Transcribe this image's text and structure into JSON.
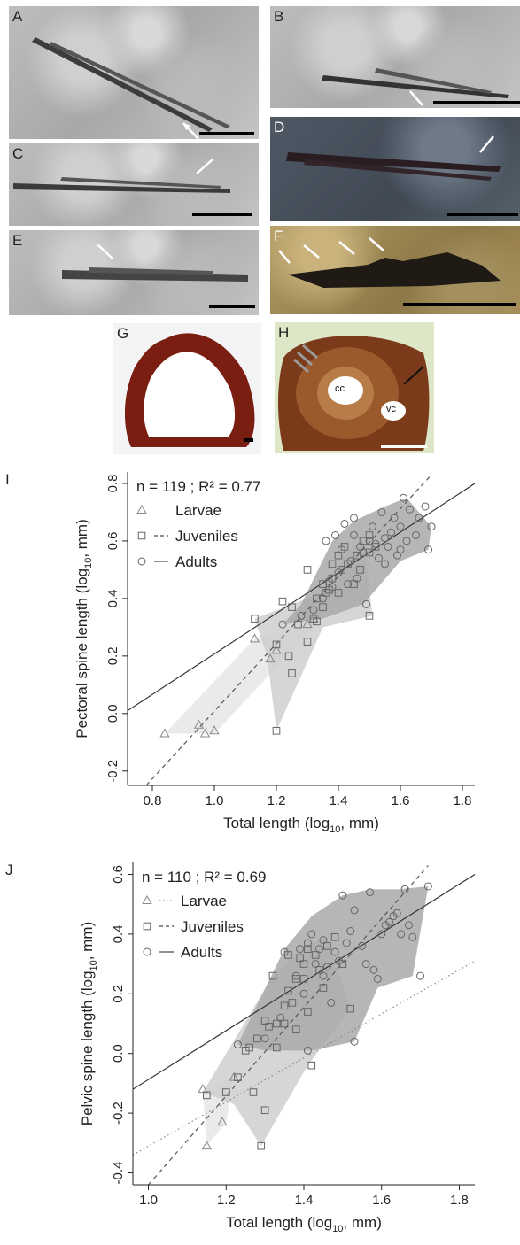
{
  "panels_photo": [
    {
      "letter": "A"
    },
    {
      "letter": "B"
    },
    {
      "letter": "C"
    },
    {
      "letter": "D"
    },
    {
      "letter": "E"
    },
    {
      "letter": "F"
    },
    {
      "letter": "G"
    },
    {
      "letter": "H"
    }
  ],
  "section_labels": {
    "cc": "cc",
    "vc": "vc"
  },
  "chart_data": [
    {
      "type": "scatter",
      "letter": "I",
      "stat": "n = 119 ; R² = 0.77",
      "xlabel_main": "Total length (log",
      "xlabel_sub": "10",
      "xlabel_end": ", mm)",
      "ylabel_main": "Pectoral spine length (log",
      "ylabel_sub": "10",
      "ylabel_end": ", mm)",
      "xlim": [
        0.72,
        1.84
      ],
      "ylim": [
        -0.25,
        0.84
      ],
      "xticks": [
        "0.8",
        "1.0",
        "1.2",
        "1.4",
        "1.6",
        "1.8"
      ],
      "xtick_values": [
        0.8,
        1.0,
        1.2,
        1.4,
        1.6,
        1.8
      ],
      "yticks": [
        "-0.2",
        "0.0",
        "0.2",
        "0.4",
        "0.6",
        "0.8"
      ],
      "ytick_values": [
        -0.2,
        0.0,
        0.2,
        0.4,
        0.6,
        0.8
      ],
      "legend": [
        {
          "name": "Larvae",
          "marker": "triangle",
          "line": "none"
        },
        {
          "name": "Juveniles",
          "marker": "square",
          "line": "dashed"
        },
        {
          "name": "Adults",
          "marker": "circle",
          "line": "solid"
        }
      ],
      "regression_lines": [
        {
          "style": "solid",
          "x": [
            0.72,
            1.84
          ],
          "y": [
            0.01,
            0.8
          ]
        },
        {
          "style": "dashed",
          "x": [
            0.78,
            1.7
          ],
          "y": [
            -0.25,
            0.83
          ]
        }
      ],
      "hulls": [
        {
          "name": "Larvae",
          "shade": "#e6e6e6",
          "points": [
            [
              0.84,
              -0.07
            ],
            [
              1.13,
              0.26
            ],
            [
              1.31,
              0.32
            ],
            [
              1.33,
              0.31
            ],
            [
              1.0,
              -0.07
            ]
          ]
        },
        {
          "name": "Juveniles",
          "shade": "#cfcfcf",
          "points": [
            [
              1.13,
              0.33
            ],
            [
              1.37,
              0.43
            ],
            [
              1.42,
              0.55
            ],
            [
              1.48,
              0.61
            ],
            [
              1.51,
              0.34
            ],
            [
              1.35,
              0.3
            ],
            [
              1.2,
              -0.06
            ],
            [
              1.17,
              0.2
            ]
          ]
        },
        {
          "name": "Adults",
          "shade": "#a9a9a9",
          "points": [
            [
              1.22,
              0.31
            ],
            [
              1.28,
              0.38
            ],
            [
              1.38,
              0.6
            ],
            [
              1.45,
              0.67
            ],
            [
              1.55,
              0.72
            ],
            [
              1.62,
              0.75
            ],
            [
              1.7,
              0.65
            ],
            [
              1.69,
              0.57
            ],
            [
              1.6,
              0.53
            ],
            [
              1.48,
              0.38
            ],
            [
              1.35,
              0.33
            ]
          ]
        }
      ],
      "series": [
        {
          "name": "Larvae",
          "marker": "triangle",
          "x": [
            0.84,
            0.95,
            0.97,
            1.0,
            1.13,
            1.18,
            1.2,
            1.3,
            1.32
          ],
          "y": [
            -0.07,
            -0.04,
            -0.07,
            -0.06,
            0.26,
            0.19,
            0.22,
            0.31,
            0.33
          ]
        },
        {
          "name": "Juveniles",
          "marker": "square",
          "x": [
            1.13,
            1.2,
            1.2,
            1.22,
            1.24,
            1.25,
            1.25,
            1.27,
            1.3,
            1.3,
            1.32,
            1.33,
            1.33,
            1.35,
            1.35,
            1.36,
            1.37,
            1.38,
            1.38,
            1.4,
            1.4,
            1.41,
            1.42,
            1.43,
            1.45,
            1.46,
            1.47,
            1.48,
            1.5,
            1.5,
            1.5,
            1.52
          ],
          "y": [
            0.33,
            -0.06,
            0.24,
            0.39,
            0.2,
            0.14,
            0.37,
            0.31,
            0.25,
            0.5,
            0.33,
            0.32,
            0.4,
            0.37,
            0.45,
            0.42,
            0.43,
            0.47,
            0.52,
            0.42,
            0.55,
            0.5,
            0.58,
            0.52,
            0.45,
            0.55,
            0.5,
            0.6,
            0.34,
            0.56,
            0.62,
            0.58
          ]
        },
        {
          "name": "Adults",
          "marker": "circle",
          "x": [
            1.22,
            1.28,
            1.32,
            1.35,
            1.36,
            1.37,
            1.38,
            1.39,
            1.4,
            1.41,
            1.42,
            1.43,
            1.44,
            1.45,
            1.45,
            1.46,
            1.47,
            1.48,
            1.49,
            1.5,
            1.51,
            1.52,
            1.53,
            1.54,
            1.55,
            1.55,
            1.56,
            1.57,
            1.58,
            1.59,
            1.6,
            1.6,
            1.61,
            1.62,
            1.63,
            1.65,
            1.66,
            1.68,
            1.69,
            1.7
          ],
          "y": [
            0.31,
            0.34,
            0.36,
            0.4,
            0.6,
            0.46,
            0.44,
            0.62,
            0.49,
            0.57,
            0.66,
            0.45,
            0.53,
            0.62,
            0.68,
            0.47,
            0.58,
            0.56,
            0.38,
            0.6,
            0.65,
            0.59,
            0.54,
            0.7,
            0.61,
            0.52,
            0.58,
            0.63,
            0.68,
            0.55,
            0.57,
            0.65,
            0.75,
            0.6,
            0.71,
            0.62,
            0.68,
            0.72,
            0.57,
            0.65
          ]
        }
      ]
    },
    {
      "type": "scatter",
      "letter": "J",
      "stat": "n = 110 ; R² = 0.69",
      "xlabel_main": "Total length (log",
      "xlabel_sub": "10",
      "xlabel_end": ", mm)",
      "ylabel_main": "Pelvic spine length (log",
      "ylabel_sub": "10",
      "ylabel_end": ", mm)",
      "xlim": [
        0.96,
        1.84
      ],
      "ylim": [
        -0.44,
        0.64
      ],
      "xticks": [
        "1.0",
        "1.2",
        "1.4",
        "1.6",
        "1.8"
      ],
      "xtick_values": [
        1.0,
        1.2,
        1.4,
        1.6,
        1.8
      ],
      "yticks": [
        "-0.4",
        "-0.2",
        "0.0",
        "0.2",
        "0.4",
        "0.6"
      ],
      "ytick_values": [
        -0.4,
        -0.2,
        0.0,
        0.2,
        0.4,
        0.6
      ],
      "legend": [
        {
          "name": "Larvae",
          "marker": "triangle",
          "line": "dotted"
        },
        {
          "name": "Juveniles",
          "marker": "square",
          "line": "dashed"
        },
        {
          "name": "Adults",
          "marker": "circle",
          "line": "solid"
        }
      ],
      "regression_lines": [
        {
          "style": "solid",
          "x": [
            0.96,
            1.84
          ],
          "y": [
            -0.12,
            0.6
          ]
        },
        {
          "style": "dashed",
          "x": [
            1.0,
            1.72
          ],
          "y": [
            -0.44,
            0.63
          ]
        },
        {
          "style": "dotted",
          "x": [
            0.96,
            1.84
          ],
          "y": [
            -0.34,
            0.31
          ]
        }
      ],
      "hulls": [
        {
          "name": "Larvae",
          "shade": "#e6e6e6",
          "points": [
            [
              1.14,
              -0.12
            ],
            [
              1.22,
              -0.08
            ],
            [
              1.2,
              -0.23
            ],
            [
              1.15,
              -0.31
            ]
          ]
        },
        {
          "name": "Juveniles",
          "shade": "#cfcfcf",
          "points": [
            [
              1.14,
              -0.13
            ],
            [
              1.32,
              0.26
            ],
            [
              1.4,
              0.36
            ],
            [
              1.46,
              0.39
            ],
            [
              1.52,
              0.15
            ],
            [
              1.41,
              -0.04
            ],
            [
              1.29,
              -0.31
            ],
            [
              1.22,
              -0.17
            ]
          ]
        },
        {
          "name": "Adults",
          "shade": "#a9a9a9",
          "points": [
            [
              1.23,
              0.03
            ],
            [
              1.35,
              0.35
            ],
            [
              1.42,
              0.46
            ],
            [
              1.5,
              0.53
            ],
            [
              1.57,
              0.55
            ],
            [
              1.64,
              0.55
            ],
            [
              1.72,
              0.56
            ],
            [
              1.68,
              0.26
            ],
            [
              1.59,
              0.22
            ],
            [
              1.53,
              0.04
            ],
            [
              1.42,
              0.01
            ],
            [
              1.3,
              0.01
            ]
          ]
        }
      ],
      "series": [
        {
          "name": "Larvae",
          "marker": "triangle",
          "x": [
            1.14,
            1.15,
            1.19,
            1.22
          ],
          "y": [
            -0.12,
            -0.31,
            -0.23,
            -0.08
          ]
        },
        {
          "name": "Juveniles",
          "marker": "square",
          "x": [
            1.15,
            1.2,
            1.23,
            1.25,
            1.26,
            1.27,
            1.28,
            1.29,
            1.3,
            1.3,
            1.31,
            1.32,
            1.33,
            1.33,
            1.35,
            1.35,
            1.36,
            1.36,
            1.37,
            1.38,
            1.38,
            1.39,
            1.4,
            1.4,
            1.41,
            1.41,
            1.42,
            1.43,
            1.44,
            1.45,
            1.46,
            1.48,
            1.5,
            1.52
          ],
          "y": [
            -0.14,
            -0.13,
            -0.08,
            0.01,
            0.02,
            -0.13,
            0.05,
            -0.31,
            0.11,
            -0.19,
            0.09,
            0.26,
            0.1,
            0.02,
            0.16,
            0.1,
            0.33,
            0.21,
            0.17,
            0.25,
            0.08,
            0.32,
            0.3,
            0.25,
            0.14,
            0.35,
            -0.04,
            0.33,
            0.28,
            0.22,
            0.36,
            0.39,
            0.3,
            0.15
          ]
        },
        {
          "name": "Adults",
          "marker": "circle",
          "x": [
            1.23,
            1.3,
            1.34,
            1.35,
            1.38,
            1.39,
            1.4,
            1.41,
            1.41,
            1.42,
            1.43,
            1.44,
            1.45,
            1.45,
            1.46,
            1.47,
            1.48,
            1.49,
            1.5,
            1.51,
            1.52,
            1.53,
            1.53,
            1.55,
            1.56,
            1.57,
            1.58,
            1.59,
            1.6,
            1.61,
            1.62,
            1.63,
            1.64,
            1.65,
            1.66,
            1.67,
            1.68,
            1.7,
            1.72
          ],
          "y": [
            0.03,
            0.05,
            0.12,
            0.34,
            0.26,
            0.35,
            0.2,
            0.37,
            0.01,
            0.4,
            0.3,
            0.35,
            0.26,
            0.38,
            0.29,
            0.17,
            0.34,
            0.31,
            0.53,
            0.37,
            0.41,
            0.04,
            0.48,
            0.36,
            0.3,
            0.54,
            0.28,
            0.25,
            0.4,
            0.43,
            0.44,
            0.46,
            0.47,
            0.4,
            0.55,
            0.43,
            0.39,
            0.26,
            0.56
          ]
        }
      ]
    }
  ]
}
